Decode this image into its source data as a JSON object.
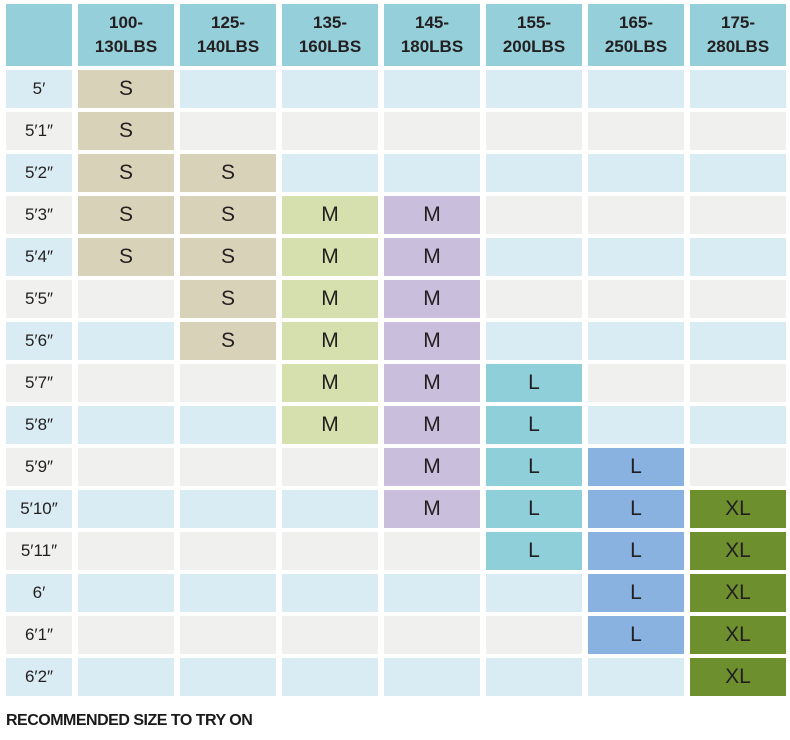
{
  "colors": {
    "headerTeal": "#94cfda",
    "rowBlue": "#d9ecf3",
    "rowWhite": "#f0f0ee",
    "sizeSTan": "#d8d2b9",
    "sizeMGreen": "#d5e0ae",
    "sizeMPurple": "#c9bedb",
    "sizeLTeal": "#8ecfda",
    "sizeLBlue": "#89b2e0",
    "sizeXlOlive": "#6e8f2e",
    "textColor": "#231f20"
  },
  "chart_data": {
    "type": "table",
    "title": "",
    "note": "RECOMMENDED SIZE TO TRY ON",
    "columns": [
      "100-130LBS",
      "125-140LBS",
      "135-160LBS",
      "145-180LBS",
      "155-200LBS",
      "165-250LBS",
      "175-280LBS"
    ],
    "rows": [
      {
        "height": "5′",
        "sizes": [
          "S",
          "",
          "",
          "",
          "",
          "",
          ""
        ]
      },
      {
        "height": "5′1″",
        "sizes": [
          "S",
          "",
          "",
          "",
          "",
          "",
          ""
        ]
      },
      {
        "height": "5′2″",
        "sizes": [
          "S",
          "S",
          "",
          "",
          "",
          "",
          ""
        ]
      },
      {
        "height": "5′3″",
        "sizes": [
          "S",
          "S",
          "M",
          "M",
          "",
          "",
          ""
        ]
      },
      {
        "height": "5′4″",
        "sizes": [
          "S",
          "S",
          "M",
          "M",
          "",
          "",
          ""
        ]
      },
      {
        "height": "5′5″",
        "sizes": [
          "",
          "S",
          "M",
          "M",
          "",
          "",
          ""
        ]
      },
      {
        "height": "5′6″",
        "sizes": [
          "",
          "S",
          "M",
          "M",
          "",
          "",
          ""
        ]
      },
      {
        "height": "5′7″",
        "sizes": [
          "",
          "",
          "M",
          "M",
          "L",
          "",
          ""
        ]
      },
      {
        "height": "5′8″",
        "sizes": [
          "",
          "",
          "M",
          "M",
          "L",
          "",
          ""
        ]
      },
      {
        "height": "5′9″",
        "sizes": [
          "",
          "",
          "",
          "M",
          "L",
          "L",
          ""
        ]
      },
      {
        "height": "5′10″",
        "sizes": [
          "",
          "",
          "",
          "M",
          "L",
          "L",
          "XL"
        ]
      },
      {
        "height": "5′11″",
        "sizes": [
          "",
          "",
          "",
          "",
          "L",
          "L",
          "XL"
        ]
      },
      {
        "height": "6′",
        "sizes": [
          "",
          "",
          "",
          "",
          "",
          "L",
          "XL"
        ]
      },
      {
        "height": "6′1″",
        "sizes": [
          "",
          "",
          "",
          "",
          "",
          "L",
          "XL"
        ]
      },
      {
        "height": "6′2″",
        "sizes": [
          "",
          "",
          "",
          "",
          "",
          "",
          "XL"
        ]
      }
    ]
  }
}
